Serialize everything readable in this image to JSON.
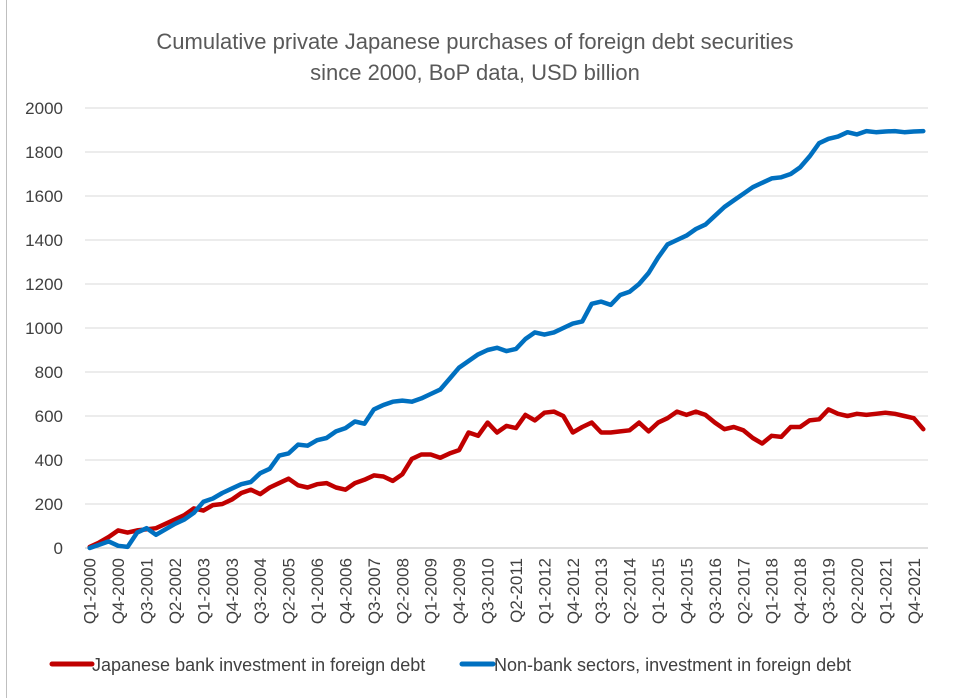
{
  "chart_data": {
    "type": "line",
    "title": "Cumulative private Japanese purchases of foreign debt securities",
    "subtitle": "since 2000, BoP data, USD billion",
    "xlabel": "",
    "ylabel": "",
    "ylim": [
      0,
      2000
    ],
    "yticks": [
      0,
      200,
      400,
      600,
      800,
      1000,
      1200,
      1400,
      1600,
      1800,
      2000
    ],
    "grid": true,
    "legend_position": "bottom",
    "x": [
      "Q1-2000",
      "Q2-2000",
      "Q3-2000",
      "Q4-2000",
      "Q1-2001",
      "Q2-2001",
      "Q3-2001",
      "Q4-2001",
      "Q1-2002",
      "Q2-2002",
      "Q3-2002",
      "Q4-2002",
      "Q1-2003",
      "Q2-2003",
      "Q3-2003",
      "Q4-2003",
      "Q1-2004",
      "Q2-2004",
      "Q3-2004",
      "Q4-2004",
      "Q1-2005",
      "Q2-2005",
      "Q3-2005",
      "Q4-2005",
      "Q1-2006",
      "Q2-2006",
      "Q3-2006",
      "Q4-2006",
      "Q1-2007",
      "Q2-2007",
      "Q3-2007",
      "Q4-2007",
      "Q1-2008",
      "Q2-2008",
      "Q3-2008",
      "Q4-2008",
      "Q1-2009",
      "Q2-2009",
      "Q3-2009",
      "Q4-2009",
      "Q1-2010",
      "Q2-2010",
      "Q3-2010",
      "Q4-2010",
      "Q1-2011",
      "Q2-2011",
      "Q3-2011",
      "Q4-2011",
      "Q1-2012",
      "Q2-2012",
      "Q3-2012",
      "Q4-2012",
      "Q1-2013",
      "Q2-2013",
      "Q3-2013",
      "Q4-2013",
      "Q1-2014",
      "Q2-2014",
      "Q3-2014",
      "Q4-2014",
      "Q1-2015",
      "Q2-2015",
      "Q3-2015",
      "Q4-2015",
      "Q1-2016",
      "Q2-2016",
      "Q3-2016",
      "Q4-2016",
      "Q1-2017",
      "Q2-2017",
      "Q3-2017",
      "Q4-2017",
      "Q1-2018",
      "Q2-2018",
      "Q3-2018",
      "Q4-2018",
      "Q1-2019",
      "Q2-2019",
      "Q3-2019",
      "Q4-2019",
      "Q1-2020",
      "Q2-2020",
      "Q3-2020",
      "Q4-2020",
      "Q1-2021",
      "Q2-2021",
      "Q3-2021",
      "Q4-2021",
      "Q1-2022"
    ],
    "x_tick_labels": [
      "Q1-2000",
      "Q4-2000",
      "Q3-2001",
      "Q2-2002",
      "Q1-2003",
      "Q4-2003",
      "Q3-2004",
      "Q2-2005",
      "Q1-2006",
      "Q4-2006",
      "Q3-2007",
      "Q2-2008",
      "Q1-2009",
      "Q4-2009",
      "Q3-2010",
      "Q2-2011",
      "Q1-2012",
      "Q4-2012",
      "Q3-2013",
      "Q2-2014",
      "Q1-2015",
      "Q4-2015",
      "Q3-2016",
      "Q2-2017",
      "Q1-2018",
      "Q4-2018",
      "Q3-2019",
      "Q2-2020",
      "Q1-2021",
      "Q4-2021"
    ],
    "series": [
      {
        "name": "Japanese bank investment in foreign debt",
        "color": "#c00000",
        "values": [
          5,
          25,
          50,
          80,
          70,
          80,
          85,
          90,
          110,
          130,
          150,
          180,
          170,
          195,
          200,
          220,
          250,
          265,
          245,
          275,
          295,
          315,
          285,
          275,
          290,
          295,
          275,
          265,
          295,
          310,
          330,
          325,
          305,
          335,
          405,
          425,
          425,
          410,
          430,
          445,
          525,
          510,
          570,
          525,
          555,
          545,
          605,
          580,
          615,
          620,
          600,
          525,
          550,
          570,
          525,
          525,
          530,
          535,
          570,
          530,
          570,
          590,
          620,
          605,
          620,
          605,
          570,
          540,
          550,
          535,
          500,
          475,
          510,
          505,
          550,
          550,
          580,
          585,
          630,
          610,
          600,
          610,
          605,
          610,
          615,
          610,
          600,
          590,
          540
        ]
      },
      {
        "name": "Non-bank sectors, investment in foreign debt",
        "color": "#0070c0",
        "values": [
          0,
          15,
          30,
          10,
          5,
          70,
          90,
          60,
          85,
          110,
          130,
          160,
          210,
          225,
          250,
          270,
          290,
          300,
          340,
          360,
          420,
          430,
          470,
          465,
          490,
          500,
          530,
          545,
          575,
          565,
          630,
          650,
          665,
          670,
          665,
          680,
          700,
          720,
          770,
          820,
          850,
          880,
          900,
          910,
          895,
          905,
          950,
          980,
          970,
          980,
          1000,
          1020,
          1030,
          1110,
          1120,
          1105,
          1150,
          1165,
          1200,
          1250,
          1320,
          1380,
          1400,
          1420,
          1450,
          1470,
          1510,
          1550,
          1580,
          1610,
          1640,
          1660,
          1680,
          1685,
          1700,
          1730,
          1780,
          1840,
          1860,
          1870,
          1890,
          1880,
          1895,
          1890,
          1893,
          1895,
          1890,
          1893,
          1895
        ]
      }
    ]
  }
}
